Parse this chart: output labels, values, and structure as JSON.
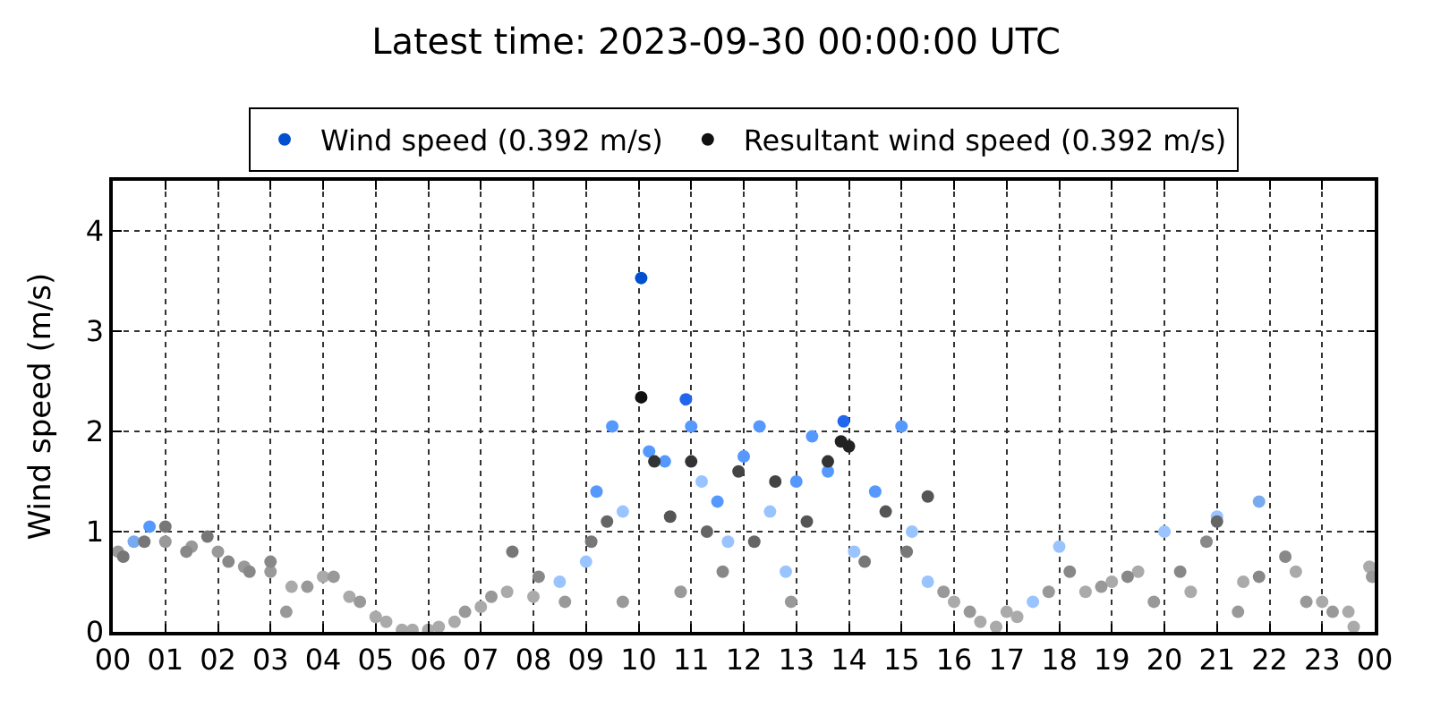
{
  "chart_data": {
    "type": "scatter",
    "title": "Latest time: 2023-09-30 00:00:00 UTC",
    "ylabel": "Wind speed (m/s)",
    "xlim": [
      0,
      24
    ],
    "xticks": [
      {
        "value": 0,
        "label": "00"
      },
      {
        "value": 1,
        "label": "01"
      },
      {
        "value": 2,
        "label": "02"
      },
      {
        "value": 3,
        "label": "03"
      },
      {
        "value": 4,
        "label": "04"
      },
      {
        "value": 5,
        "label": "05"
      },
      {
        "value": 6,
        "label": "06"
      },
      {
        "value": 7,
        "label": "07"
      },
      {
        "value": 8,
        "label": "08"
      },
      {
        "value": 9,
        "label": "09"
      },
      {
        "value": 10,
        "label": "10"
      },
      {
        "value": 11,
        "label": "11"
      },
      {
        "value": 12,
        "label": "12"
      },
      {
        "value": 13,
        "label": "13"
      },
      {
        "value": 14,
        "label": "14"
      },
      {
        "value": 15,
        "label": "15"
      },
      {
        "value": 16,
        "label": "16"
      },
      {
        "value": 17,
        "label": "17"
      },
      {
        "value": 18,
        "label": "18"
      },
      {
        "value": 19,
        "label": "19"
      },
      {
        "value": 20,
        "label": "20"
      },
      {
        "value": 21,
        "label": "21"
      },
      {
        "value": 22,
        "label": "22"
      },
      {
        "value": 23,
        "label": "23"
      },
      {
        "value": 24,
        "label": "00"
      }
    ],
    "ylim": [
      0,
      4.5
    ],
    "yticks": [
      0,
      1,
      2,
      3,
      4
    ],
    "grid": true,
    "legend": "top",
    "marker": "circle",
    "series": [
      {
        "name": "Wind speed (0.392 m/s)",
        "color": "#0050d0",
        "x": [
          0.1,
          0.4,
          0.7,
          1.0,
          1.5,
          2.0,
          2.5,
          3.0,
          3.4,
          4.0,
          4.5,
          5.0,
          5.5,
          6.0,
          6.5,
          7.0,
          7.5,
          8.0,
          8.5,
          9.0,
          9.2,
          9.5,
          9.7,
          10.05,
          10.2,
          10.5,
          10.9,
          11.0,
          11.2,
          11.5,
          11.7,
          12.0,
          12.3,
          12.5,
          12.8,
          13.0,
          13.3,
          13.6,
          13.9,
          14.1,
          14.5,
          15.0,
          15.2,
          15.5,
          16.0,
          16.5,
          17.0,
          17.5,
          18.0,
          18.5,
          19.0,
          19.5,
          20.0,
          20.5,
          21.0,
          21.5,
          21.8,
          22.5,
          23.0,
          23.5,
          23.9
        ],
        "values": [
          0.8,
          0.9,
          1.05,
          0.9,
          0.85,
          0.8,
          0.65,
          0.6,
          0.45,
          0.55,
          0.35,
          0.15,
          0.02,
          0.02,
          0.1,
          0.25,
          0.4,
          0.35,
          0.5,
          0.7,
          1.4,
          2.05,
          1.2,
          3.53,
          1.8,
          1.7,
          2.32,
          2.05,
          1.5,
          1.3,
          0.9,
          1.75,
          2.05,
          1.2,
          0.6,
          1.5,
          1.95,
          1.6,
          2.1,
          0.8,
          1.4,
          2.05,
          1.0,
          0.5,
          0.3,
          0.1,
          0.2,
          0.3,
          0.85,
          0.4,
          0.5,
          0.6,
          1.0,
          0.4,
          1.15,
          0.5,
          1.3,
          0.6,
          0.3,
          0.2,
          0.65
        ],
        "colors": [
          "#999999",
          "#77aaee",
          "#5599ff",
          "#999999",
          "#999999",
          "#999999",
          "#999999",
          "#999999",
          "#aaaaaa",
          "#aaaaaa",
          "#aaaaaa",
          "#aaaaaa",
          "#aaaaaa",
          "#aaaaaa",
          "#aaaaaa",
          "#aaaaaa",
          "#aaaaaa",
          "#aaaaaa",
          "#99c4ff",
          "#99c4ff",
          "#5599ff",
          "#5599ff",
          "#99c4ff",
          "#0050d0",
          "#5599ff",
          "#5599ff",
          "#2266ee",
          "#5599ff",
          "#99c4ff",
          "#5599ff",
          "#99c4ff",
          "#5599ff",
          "#5599ff",
          "#99c4ff",
          "#99c4ff",
          "#5599ff",
          "#5599ff",
          "#5599ff",
          "#2266ee",
          "#99c4ff",
          "#5599ff",
          "#5599ff",
          "#99c4ff",
          "#99c4ff",
          "#aaaaaa",
          "#aaaaaa",
          "#aaaaaa",
          "#99c4ff",
          "#99c4ff",
          "#aaaaaa",
          "#aaaaaa",
          "#aaaaaa",
          "#99c4ff",
          "#aaaaaa",
          "#99c4ff",
          "#aaaaaa",
          "#77aaee",
          "#aaaaaa",
          "#aaaaaa",
          "#aaaaaa",
          "#aaaaaa"
        ]
      },
      {
        "name": "Resultant wind speed (0.392 m/s)",
        "color": "#111111",
        "x": [
          0.2,
          0.6,
          1.0,
          1.4,
          1.8,
          2.2,
          2.6,
          3.0,
          3.3,
          3.7,
          4.2,
          4.7,
          5.2,
          5.7,
          6.2,
          6.7,
          7.2,
          7.6,
          8.1,
          8.6,
          9.1,
          9.4,
          9.7,
          10.05,
          10.3,
          10.6,
          10.8,
          11.0,
          11.3,
          11.6,
          11.9,
          12.2,
          12.6,
          12.9,
          13.2,
          13.6,
          13.85,
          14.0,
          14.3,
          14.7,
          15.1,
          15.5,
          15.8,
          16.3,
          16.8,
          17.2,
          17.8,
          18.2,
          18.8,
          19.3,
          19.8,
          20.3,
          20.8,
          21.0,
          21.4,
          21.8,
          22.3,
          22.7,
          23.2,
          23.6,
          23.95
        ],
        "values": [
          0.75,
          0.9,
          1.05,
          0.8,
          0.95,
          0.7,
          0.6,
          0.7,
          0.2,
          0.45,
          0.55,
          0.3,
          0.1,
          0.02,
          0.05,
          0.2,
          0.35,
          0.8,
          0.55,
          0.3,
          0.9,
          1.1,
          0.3,
          2.34,
          1.7,
          1.15,
          0.4,
          1.7,
          1.0,
          0.6,
          1.6,
          0.9,
          1.5,
          0.3,
          1.1,
          1.7,
          1.9,
          1.85,
          0.7,
          1.2,
          0.8,
          1.35,
          0.4,
          0.2,
          0.05,
          0.15,
          0.4,
          0.6,
          0.45,
          0.55,
          0.3,
          0.6,
          0.9,
          1.1,
          0.2,
          0.55,
          0.75,
          0.3,
          0.2,
          0.05,
          0.55
        ],
        "colors": [
          "#777777",
          "#777777",
          "#777777",
          "#888888",
          "#777777",
          "#888888",
          "#888888",
          "#888888",
          "#999999",
          "#999999",
          "#999999",
          "#999999",
          "#aaaaaa",
          "#aaaaaa",
          "#aaaaaa",
          "#999999",
          "#999999",
          "#777777",
          "#888888",
          "#999999",
          "#777777",
          "#666666",
          "#999999",
          "#111111",
          "#333333",
          "#555555",
          "#999999",
          "#333333",
          "#666666",
          "#888888",
          "#444444",
          "#666666",
          "#444444",
          "#999999",
          "#555555",
          "#333333",
          "#222222",
          "#222222",
          "#777777",
          "#555555",
          "#777777",
          "#555555",
          "#999999",
          "#999999",
          "#aaaaaa",
          "#aaaaaa",
          "#999999",
          "#888888",
          "#999999",
          "#888888",
          "#999999",
          "#888888",
          "#888888",
          "#666666",
          "#999999",
          "#888888",
          "#888888",
          "#999999",
          "#999999",
          "#aaaaaa",
          "#999999"
        ]
      }
    ]
  }
}
